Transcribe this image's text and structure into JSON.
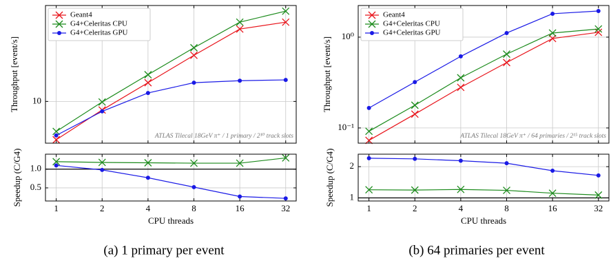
{
  "chart_data": [
    {
      "type": "line",
      "xscale": "log",
      "yscale": "log",
      "grid": true,
      "legend": "upper left",
      "ylabel": "Throughput [event/s]",
      "annotation": "ATLAS Tilecal 18GeV π⁺ / 1 primary / 2¹⁰ track slots",
      "x": [
        1,
        2,
        4,
        8,
        16,
        32
      ],
      "xlim": [
        0.85,
        37.5
      ],
      "xticks": [
        1,
        2,
        4,
        8,
        16,
        32
      ],
      "ylim": [
        4.8,
        54
      ],
      "yticks": [
        10
      ],
      "series": [
        {
          "name": "Geant4",
          "color": "#e8141b",
          "marker": "x",
          "values": [
            5.1,
            8.6,
            13.9,
            22.5,
            35.7,
            40.3
          ]
        },
        {
          "name": "G4+Celeritas CPU",
          "color": "#1b8a1b",
          "marker": "x",
          "values": [
            5.9,
            9.9,
            16.0,
            25.7,
            40.3,
            48.9
          ]
        },
        {
          "name": "G4+Celeritas GPU",
          "color": "#1a1ae6",
          "marker": "o",
          "values": [
            5.5,
            8.4,
            11.6,
            13.9,
            14.4,
            14.6
          ]
        }
      ]
    },
    {
      "type": "line",
      "xscale": "log",
      "grid": true,
      "ylabel": "Speedup (C/G4)",
      "xlabel": "CPU threads",
      "caption": "(a) 1 primary per event",
      "x": [
        1,
        2,
        4,
        8,
        16,
        32
      ],
      "xlim": [
        0.85,
        37.5
      ],
      "xticks": [
        1,
        2,
        4,
        8,
        16,
        32
      ],
      "ylim": [
        0.15,
        1.4
      ],
      "yticks": [
        {
          "value": 0.5,
          "label": "0.5"
        },
        {
          "value": 1,
          "label": "1.0"
        }
      ],
      "hline": 1,
      "series": [
        {
          "color": "#1b8a1b",
          "marker": "x",
          "values": [
            1.2,
            1.18,
            1.17,
            1.16,
            1.16,
            1.3
          ]
        },
        {
          "color": "#1a1ae6",
          "marker": "o",
          "values": [
            1.1,
            0.98,
            0.77,
            0.52,
            0.27,
            0.22
          ]
        }
      ]
    },
    {
      "type": "line",
      "xscale": "log",
      "yscale": "log",
      "grid": true,
      "legend": "upper left",
      "ylabel": "Throughput [event/s]",
      "annotation": "ATLAS Tilecal 18GeV π⁺ / 64 primaries / 2¹⁵ track slots",
      "x": [
        1,
        2,
        4,
        8,
        16,
        32
      ],
      "xlim": [
        0.85,
        37.5
      ],
      "xticks": [
        1,
        2,
        4,
        8,
        16,
        32
      ],
      "ylim": [
        0.068,
        2.23
      ],
      "yticks": [
        {
          "value": 0.1,
          "label": "10⁻¹"
        },
        {
          "value": 1,
          "label": "10⁰"
        }
      ],
      "series": [
        {
          "name": "Geant4",
          "color": "#e8141b",
          "marker": "x",
          "values": [
            0.073,
            0.142,
            0.28,
            0.525,
            0.966,
            1.13
          ]
        },
        {
          "name": "G4+Celeritas CPU",
          "color": "#1b8a1b",
          "marker": "x",
          "values": [
            0.092,
            0.178,
            0.357,
            0.65,
            1.11,
            1.23
          ]
        },
        {
          "name": "G4+Celeritas GPU",
          "color": "#1a1ae6",
          "marker": "o",
          "values": [
            0.166,
            0.32,
            0.614,
            1.11,
            1.81,
            1.94
          ]
        }
      ]
    },
    {
      "type": "line",
      "xscale": "log",
      "grid": true,
      "ylabel": "Speedup (C/G4)",
      "xlabel": "CPU threads",
      "caption": "(b) 64 primaries per event",
      "x": [
        1,
        2,
        4,
        8,
        16,
        32
      ],
      "xlim": [
        0.85,
        37.5
      ],
      "xticks": [
        1,
        2,
        4,
        8,
        16,
        32
      ],
      "ylim": [
        0.9,
        2.4
      ],
      "yticks": [
        1,
        2
      ],
      "hline": 1,
      "series": [
        {
          "color": "#1b8a1b",
          "marker": "x",
          "values": [
            1.26,
            1.25,
            1.27,
            1.24,
            1.15,
            1.09
          ]
        },
        {
          "color": "#1a1ae6",
          "marker": "o",
          "values": [
            2.27,
            2.25,
            2.19,
            2.11,
            1.87,
            1.72
          ]
        }
      ]
    }
  ]
}
